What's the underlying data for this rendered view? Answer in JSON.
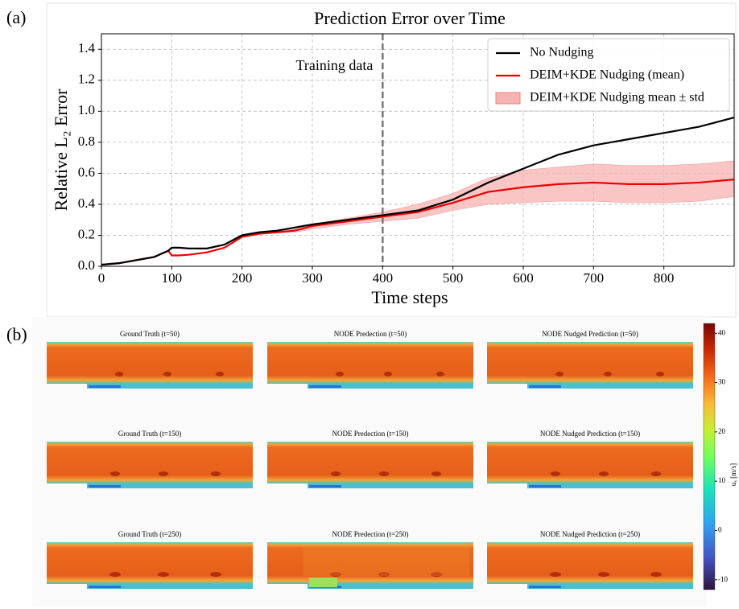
{
  "chart_data": [
    {
      "type": "line",
      "panel_label": "(a)",
      "title": "Prediction Error over Time",
      "xlabel": "Time steps",
      "ylabel": "Relative L₂ Error",
      "xlim": [
        0,
        900
      ],
      "ylim": [
        0,
        1.5
      ],
      "xticks": [
        0,
        100,
        200,
        300,
        400,
        500,
        600,
        700,
        800
      ],
      "yticks": [
        {
          "value": 0,
          "label": "0.0"
        },
        0.2,
        0.4,
        0.6,
        0.8,
        {
          "value": 1,
          "label": "1.0"
        },
        1.2,
        1.4
      ],
      "grid": true,
      "legend": "upper right",
      "vline": {
        "x": 400,
        "label": "Training data",
        "color": "#777777"
      },
      "x": [
        0,
        25,
        50,
        75,
        95,
        100,
        110,
        125,
        150,
        175,
        200,
        225,
        250,
        275,
        300,
        350,
        400,
        450,
        500,
        550,
        600,
        650,
        700,
        750,
        800,
        850,
        900
      ],
      "series": [
        {
          "name": "No Nudging",
          "color": "#000000",
          "values": [
            0.01,
            0.02,
            0.04,
            0.06,
            0.1,
            0.12,
            0.12,
            0.115,
            0.115,
            0.14,
            0.2,
            0.22,
            0.23,
            0.25,
            0.27,
            0.3,
            0.33,
            0.36,
            0.43,
            0.54,
            0.63,
            0.72,
            0.78,
            0.82,
            0.86,
            0.9,
            0.96
          ]
        },
        {
          "name": "DEIM+KDE Nudging (mean)",
          "color": "#ee0000",
          "values": [
            0.01,
            0.02,
            0.04,
            0.06,
            0.1,
            0.07,
            0.07,
            0.075,
            0.09,
            0.12,
            0.19,
            0.21,
            0.22,
            0.23,
            0.26,
            0.29,
            0.32,
            0.35,
            0.41,
            0.48,
            0.51,
            0.53,
            0.54,
            0.53,
            0.53,
            0.54,
            0.56
          ]
        },
        {
          "name": "DEIM+KDE Nudging mean ± std",
          "color": "#f7b2b2",
          "kind": "band",
          "lower": [
            0.01,
            0.02,
            0.04,
            0.06,
            0.1,
            0.07,
            0.07,
            0.075,
            0.09,
            0.12,
            0.19,
            0.21,
            0.215,
            0.22,
            0.24,
            0.27,
            0.29,
            0.31,
            0.36,
            0.4,
            0.41,
            0.42,
            0.42,
            0.41,
            0.41,
            0.42,
            0.45
          ],
          "upper": [
            0.01,
            0.02,
            0.04,
            0.06,
            0.1,
            0.07,
            0.07,
            0.075,
            0.09,
            0.12,
            0.19,
            0.21,
            0.225,
            0.24,
            0.27,
            0.31,
            0.35,
            0.4,
            0.47,
            0.57,
            0.62,
            0.64,
            0.66,
            0.65,
            0.65,
            0.66,
            0.68
          ]
        }
      ]
    },
    {
      "type": "field-grid",
      "panel_label": "(b)",
      "panels": [
        "Ground Truth (t=50)",
        "NODE Predection (t=50)",
        "NODE Nudged Prediction (t=50)",
        "Ground Truth (t=150)",
        "NODE Predection (t=150)",
        "NODE Nudged Prediction (t=150)",
        "Ground Truth (t=250)",
        "NODE Predection (t=250)",
        "NODE Nudged Prediction (t=250)"
      ],
      "colorbar": {
        "label": "uₓ [m/s]",
        "ylim": [
          -12,
          42
        ],
        "yticks": [
          -10,
          0,
          10,
          20,
          30,
          40
        ]
      }
    }
  ]
}
